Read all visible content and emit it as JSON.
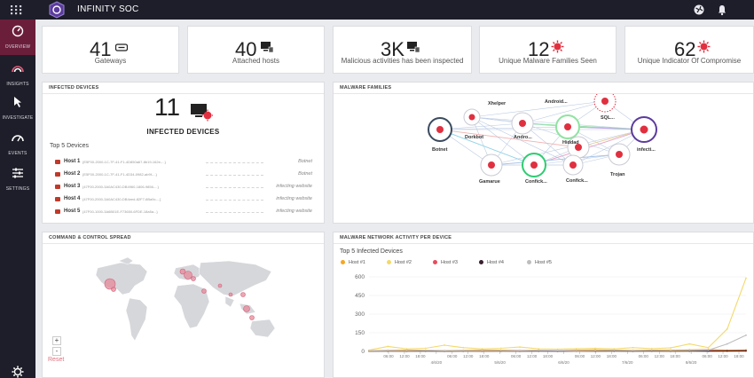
{
  "app": {
    "title": "INFINITY SOC"
  },
  "topbar": {
    "icons": [
      "apps-grid-icon",
      "logo-icon",
      "globe-icon",
      "bell-icon"
    ]
  },
  "sidebar": {
    "items": [
      {
        "label": "OVERVIEW",
        "icon": "gauge-icon",
        "active": true
      },
      {
        "label": "INSIGHTS",
        "icon": "rainbow-icon",
        "active": false
      },
      {
        "label": "INVESTIGATE",
        "icon": "cursor-icon",
        "active": false
      },
      {
        "label": "EVENTS",
        "icon": "events-icon",
        "active": false
      },
      {
        "label": "SETTINGS",
        "icon": "sliders-icon",
        "active": false
      }
    ],
    "bottom_icon": "gear-icon"
  },
  "stats": [
    {
      "value": "41",
      "label": "Gateways",
      "icon": "gateway-icon"
    },
    {
      "value": "40",
      "label": "Attached hosts",
      "icon": "host-icon"
    },
    {
      "value": "3K",
      "label": "Malicious activities has been inspected",
      "icon": "host-icon"
    },
    {
      "value": "12",
      "label": "Unique Malware Families Seen",
      "icon": "virus-icon"
    },
    {
      "value": "62",
      "label": "Unique Indicator Of Compromise",
      "icon": "virus-icon"
    }
  ],
  "infected": {
    "title": "INFECTED DEVICES",
    "count": "11",
    "label": "INFECTED DEVICES",
    "top5_label": "Top 5 Devices",
    "hosts": [
      {
        "name": "Host 1",
        "id": "{E5F00-2000-1C-7F-41-F1-4D850a67-8b19-162e-...}",
        "type": "Botnet"
      },
      {
        "name": "Host 2",
        "id": "{E5F00-2000-1C-7F-41-F1-4D34-0982-ab9f-...}",
        "type": "Botnet"
      },
      {
        "name": "Host 3",
        "id": "{47F00-2000-3A0AC430-DB4960-1806-9856-...}",
        "type": "infecting website"
      },
      {
        "name": "Host 4",
        "id": "{47F00-2000-3A0AC430-DB4eed-82F7-6Ba9c-...}",
        "type": "infecting website"
      },
      {
        "name": "Host 5",
        "id": "{47F00-1000-3A6B01E-F73650-6FDE-18a5a...}",
        "type": "infecting website"
      }
    ]
  },
  "malware": {
    "title": "MALWARE FAMILIES",
    "nodes": [
      "Xhelper",
      "Android...",
      "SQL...",
      "Dorkbot",
      "Andro...",
      "Hiddad",
      "infecti...",
      "Botnet",
      "Gamarue",
      "Confick...",
      "Confick...",
      "Trojan"
    ]
  },
  "cc": {
    "title": "COMMAND & CONTROL SPREAD",
    "zoom_in": "+",
    "zoom_out": "-",
    "reset": "Reset"
  },
  "activity": {
    "title": "MALWARE NETWORK ACTIVITY PER DEVICE",
    "subtitle": "Top 5 Infected Devices"
  },
  "chart_data": {
    "type": "line",
    "title": "Top 5 Infected Devices",
    "x_ticks": [
      "06:00",
      "12:00",
      "18:00",
      "4/6/20",
      "06:00",
      "12:00",
      "18:00",
      "5/6/20",
      "06:00",
      "12:00",
      "18:00",
      "6/6/20",
      "06:00",
      "12:00",
      "18:00",
      "7/6/20",
      "06:00",
      "12:00",
      "18:00",
      "8/6/20",
      "06:00",
      "12:00",
      "18:00"
    ],
    "yticks": [
      "600",
      "450",
      "300",
      "150",
      "0"
    ],
    "ylim": [
      0,
      600
    ],
    "x": [
      0,
      0.25,
      0.5,
      0.75,
      1,
      1.25,
      1.5,
      1.75,
      2,
      2.25,
      2.5,
      2.75,
      3,
      3.25,
      3.5,
      3.75,
      4,
      4.25,
      4.5,
      4.75,
      5
    ],
    "series": [
      {
        "name": "Host #1",
        "color": "#f5a623",
        "values": [
          5,
          8,
          10,
          8,
          6,
          8,
          10,
          9,
          7,
          8,
          6,
          9,
          12,
          10,
          8,
          9,
          10,
          12,
          15,
          10,
          12
        ]
      },
      {
        "name": "Host #2",
        "color": "#f4d96a",
        "values": [
          10,
          40,
          20,
          25,
          50,
          30,
          20,
          25,
          35,
          20,
          18,
          22,
          25,
          20,
          30,
          22,
          28,
          60,
          30,
          180,
          590
        ]
      },
      {
        "name": "Host #3",
        "color": "#e74c5c",
        "values": [
          3,
          5,
          4,
          5,
          3,
          4,
          5,
          4,
          6,
          5,
          4,
          6,
          5,
          4,
          5,
          6,
          5,
          4,
          6,
          5,
          6
        ]
      },
      {
        "name": "Host #4",
        "color": "#3a1f2e",
        "values": [
          2,
          3,
          2,
          3,
          2,
          3,
          2,
          3,
          2,
          3,
          2,
          3,
          2,
          3,
          2,
          3,
          2,
          3,
          2,
          3,
          4
        ]
      },
      {
        "name": "Host #5",
        "color": "#bdbdbd",
        "values": [
          4,
          6,
          5,
          7,
          5,
          6,
          5,
          6,
          5,
          7,
          6,
          5,
          6,
          8,
          6,
          7,
          6,
          8,
          10,
          60,
          130
        ]
      }
    ]
  }
}
